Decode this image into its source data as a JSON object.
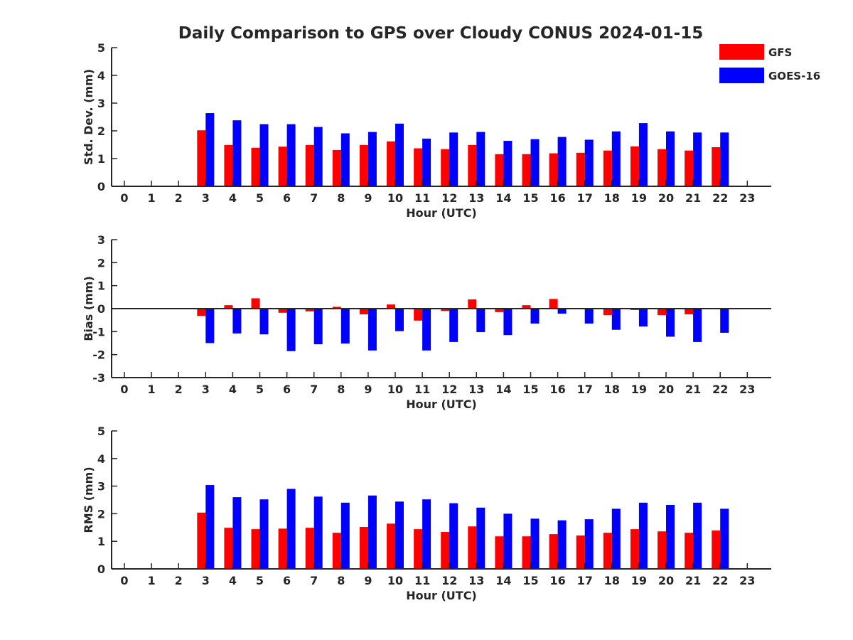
{
  "title": "Daily Comparison to GPS over Cloudy CONUS 2024-01-15",
  "legend": {
    "placement": "top-right",
    "items": [
      {
        "label": "GFS",
        "color": "#ff0000"
      },
      {
        "label": "GOES-16",
        "color": "#0000ff"
      }
    ]
  },
  "chart_data": [
    {
      "type": "bar",
      "xlabel": "Hour (UTC)",
      "ylabel": "Std. Dev. (mm)",
      "ylim": [
        0,
        5
      ],
      "yticks": [
        0,
        1,
        2,
        3,
        4,
        5
      ],
      "categories": [
        "0",
        "1",
        "2",
        "3",
        "4",
        "5",
        "6",
        "7",
        "8",
        "9",
        "10",
        "11",
        "12",
        "13",
        "14",
        "15",
        "16",
        "17",
        "18",
        "19",
        "20",
        "21",
        "22",
        "23"
      ],
      "series": [
        {
          "name": "GFS",
          "color": "#ff0000",
          "values": [
            null,
            null,
            null,
            2.02,
            1.49,
            1.39,
            1.43,
            1.49,
            1.31,
            1.49,
            1.62,
            1.37,
            1.34,
            1.49,
            1.16,
            1.16,
            1.19,
            1.21,
            1.29,
            1.44,
            1.34,
            1.29,
            1.41,
            null
          ]
        },
        {
          "name": "GOES-16",
          "color": "#0000ff",
          "values": [
            null,
            null,
            null,
            2.64,
            2.38,
            2.24,
            2.24,
            2.14,
            1.91,
            1.96,
            2.26,
            1.72,
            1.94,
            1.96,
            1.64,
            1.7,
            1.78,
            1.68,
            1.98,
            2.28,
            1.98,
            1.94,
            1.94,
            null
          ]
        }
      ]
    },
    {
      "type": "bar",
      "xlabel": "Hour (UTC)",
      "ylabel": "Bias (mm)",
      "ylim": [
        -3,
        3
      ],
      "yticks": [
        -3,
        -2,
        -1,
        0,
        1,
        2,
        3
      ],
      "categories": [
        "0",
        "1",
        "2",
        "3",
        "4",
        "5",
        "6",
        "7",
        "8",
        "9",
        "10",
        "11",
        "12",
        "13",
        "14",
        "15",
        "16",
        "17",
        "18",
        "19",
        "20",
        "21",
        "22",
        "23"
      ],
      "series": [
        {
          "name": "GFS",
          "color": "#ff0000",
          "values": [
            null,
            null,
            null,
            -0.32,
            0.15,
            0.45,
            -0.18,
            -0.12,
            0.08,
            -0.25,
            0.18,
            -0.52,
            -0.1,
            0.4,
            -0.15,
            0.15,
            0.42,
            -0.03,
            -0.28,
            -0.06,
            -0.28,
            -0.25,
            0.0,
            null
          ]
        },
        {
          "name": "GOES-16",
          "color": "#0000ff",
          "values": [
            null,
            null,
            null,
            -1.5,
            -1.08,
            -1.12,
            -1.85,
            -1.55,
            -1.52,
            -1.82,
            -0.98,
            -1.82,
            -1.45,
            -1.02,
            -1.15,
            -0.65,
            -0.22,
            -0.65,
            -0.92,
            -0.78,
            -1.22,
            -1.45,
            -1.05,
            null
          ]
        }
      ]
    },
    {
      "type": "bar",
      "xlabel": "Hour (UTC)",
      "ylabel": "RMS (mm)",
      "ylim": [
        0,
        5
      ],
      "yticks": [
        0,
        1,
        2,
        3,
        4,
        5
      ],
      "categories": [
        "0",
        "1",
        "2",
        "3",
        "4",
        "5",
        "6",
        "7",
        "8",
        "9",
        "10",
        "11",
        "12",
        "13",
        "14",
        "15",
        "16",
        "17",
        "18",
        "19",
        "20",
        "21",
        "22",
        "23"
      ],
      "series": [
        {
          "name": "GFS",
          "color": "#ff0000",
          "values": [
            null,
            null,
            null,
            2.04,
            1.49,
            1.44,
            1.46,
            1.49,
            1.31,
            1.52,
            1.64,
            1.44,
            1.34,
            1.54,
            1.18,
            1.18,
            1.26,
            1.21,
            1.31,
            1.44,
            1.36,
            1.31,
            1.39,
            null
          ]
        },
        {
          "name": "GOES-16",
          "color": "#0000ff",
          "values": [
            null,
            null,
            null,
            3.04,
            2.6,
            2.52,
            2.9,
            2.62,
            2.4,
            2.66,
            2.44,
            2.52,
            2.38,
            2.22,
            2.0,
            1.82,
            1.76,
            1.8,
            2.18,
            2.4,
            2.32,
            2.4,
            2.18,
            null
          ]
        }
      ]
    }
  ]
}
